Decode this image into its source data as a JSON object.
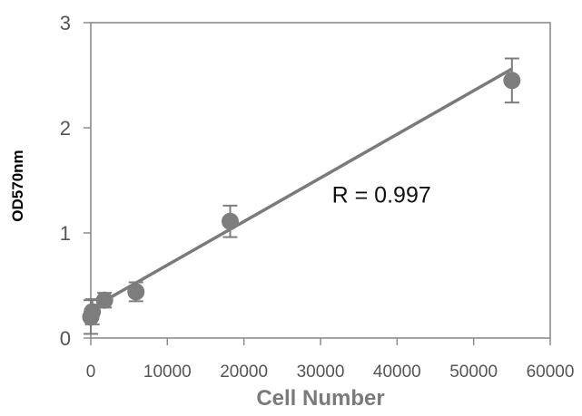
{
  "chart_data": {
    "type": "scatter",
    "xlabel": "Cell Number",
    "ylabel": "OD570nm",
    "xlim": [
      0,
      60000
    ],
    "ylim": [
      0,
      3
    ],
    "x_ticks": [
      0,
      10000,
      20000,
      30000,
      40000,
      50000,
      60000
    ],
    "x_tick_labels": [
      "0",
      "10000",
      "20000",
      "30000",
      "40000",
      "50000",
      "60000"
    ],
    "y_ticks": [
      0,
      1,
      2,
      3
    ],
    "y_tick_labels": [
      "0",
      "1",
      "2",
      "3"
    ],
    "grid": false,
    "series": [
      {
        "points": [
          {
            "x": 0,
            "y": 0.2,
            "err": 0.16
          },
          {
            "x": 200,
            "y": 0.25,
            "err": 0.12
          },
          {
            "x": 1800,
            "y": 0.36,
            "err": 0.07
          },
          {
            "x": 5900,
            "y": 0.44,
            "err": 0.09
          },
          {
            "x": 18200,
            "y": 1.11,
            "err": 0.15
          },
          {
            "x": 55000,
            "y": 2.45,
            "err": 0.21
          }
        ]
      }
    ],
    "fit_line": {
      "x": [
        0,
        55000
      ],
      "y": [
        0.28,
        2.56
      ]
    },
    "annotation": {
      "text": "R = 0.997",
      "x": 31500,
      "y": 1.29
    },
    "colors": {
      "marker": "#7d7d7d",
      "line": "#7a7a7a",
      "axis": "#8c8c8c",
      "text": "#555555"
    }
  }
}
